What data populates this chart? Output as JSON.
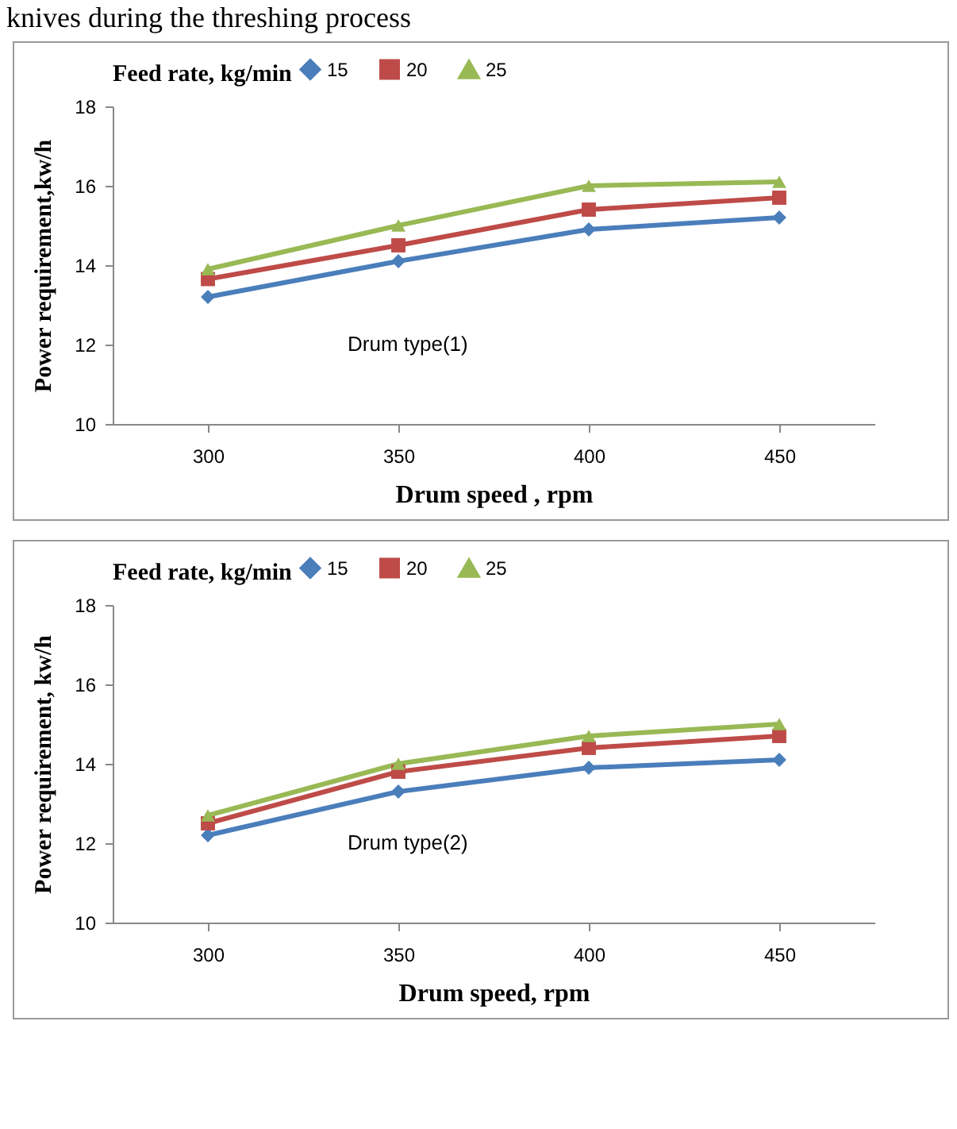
{
  "chart_data": [
    {
      "type": "line",
      "annotations": [
        "knives during the threshing process",
        "Drum type(1)"
      ],
      "legend_title": "Feed rate, kg/min",
      "xlabel": "Drum  speed , rpm",
      "ylabel": "Power requirement,kw/h",
      "categories": [
        "300",
        "350",
        "400",
        "450"
      ],
      "ylim": [
        10,
        18
      ],
      "yticks": [
        10,
        12,
        14,
        16,
        18
      ],
      "grid": false,
      "legend": "top",
      "series": [
        {
          "name": "15",
          "color": "#4a7ebb",
          "marker": "diamond",
          "values": [
            13.2,
            14.1,
            14.9,
            15.2
          ]
        },
        {
          "name": "20",
          "color": "#be4b48",
          "marker": "square",
          "values": [
            13.65,
            14.5,
            15.4,
            15.7
          ]
        },
        {
          "name": "25",
          "color": "#98b954",
          "marker": "triangle",
          "values": [
            13.9,
            15.0,
            16.0,
            16.1
          ]
        }
      ]
    },
    {
      "type": "line",
      "annotations": [
        "Drum type(2)"
      ],
      "legend_title": "Feed rate, kg/min",
      "xlabel": "Drum  speed, rpm",
      "ylabel": "Power requirement,  kw/h",
      "categories": [
        "300",
        "350",
        "400",
        "450"
      ],
      "ylim": [
        10,
        18
      ],
      "yticks": [
        10,
        12,
        14,
        16,
        18
      ],
      "grid": false,
      "legend": "top",
      "series": [
        {
          "name": "15",
          "color": "#4a7ebb",
          "marker": "diamond",
          "values": [
            12.2,
            13.3,
            13.9,
            14.1
          ]
        },
        {
          "name": "20",
          "color": "#be4b48",
          "marker": "square",
          "values": [
            12.5,
            13.8,
            14.4,
            14.7
          ]
        },
        {
          "name": "25",
          "color": "#98b954",
          "marker": "triangle",
          "values": [
            12.7,
            14.0,
            14.7,
            15.0
          ]
        }
      ]
    }
  ]
}
